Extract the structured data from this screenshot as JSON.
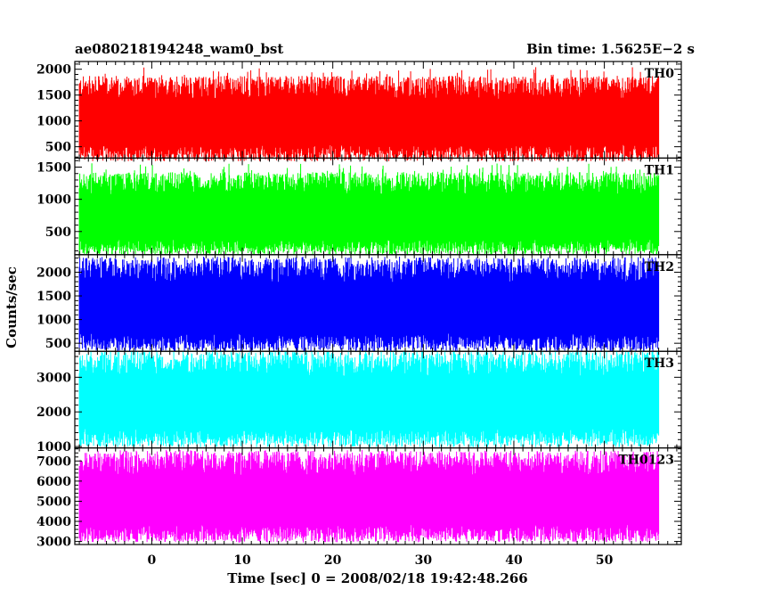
{
  "chart_data": {
    "type": "line",
    "title_left": "ae080218194248_wam0_bst",
    "title_right": "Bin time: 1.5625E−2 s",
    "xlabel": "Time [sec] 0 = 2008/02/18 19:42:48.266",
    "ylabel": "Counts/sec",
    "xlim": [
      -8.5,
      58.5
    ],
    "data_xrange": [
      -8,
      56
    ],
    "xticks": [
      0,
      10,
      20,
      30,
      40,
      50
    ],
    "grid": false,
    "panels": [
      {
        "name": "TH0",
        "color": "#ff0000",
        "ylim": [
          280,
          2150
        ],
        "yticks": [
          500,
          1000,
          1500,
          2000
        ],
        "band": [
          380,
          1650
        ],
        "spike_max": 2050,
        "spike_min": 300
      },
      {
        "name": "TH1",
        "color": "#00ff00",
        "ylim": [
          140,
          1640
        ],
        "yticks": [
          500,
          1000,
          1500
        ],
        "band": [
          260,
          1250
        ],
        "spike_max": 1560,
        "spike_min": 160
      },
      {
        "name": "TH2",
        "color": "#0000ff",
        "ylim": [
          330,
          2370
        ],
        "yticks": [
          500,
          1000,
          1500,
          2000
        ],
        "band": [
          520,
          2050
        ],
        "spike_max": 2330,
        "spike_min": 360
      },
      {
        "name": "TH3",
        "color": "#00ffff",
        "ylim": [
          960,
          3750
        ],
        "yticks": [
          1000,
          2000,
          3000
        ],
        "band": [
          1250,
          3400
        ],
        "spike_max": 3700,
        "spike_min": 1000
      },
      {
        "name": "TH0123",
        "color": "#ff00ff",
        "ylim": [
          2850,
          7650
        ],
        "yticks": [
          3000,
          4000,
          5000,
          6000,
          7000
        ],
        "band": [
          3400,
          6900
        ],
        "spike_max": 7550,
        "spike_min": 2950
      }
    ]
  }
}
